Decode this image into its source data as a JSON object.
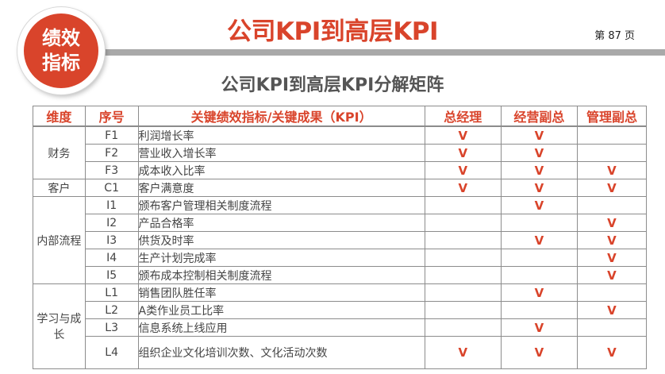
{
  "badge": {
    "line1": "绩效",
    "line2": "指标"
  },
  "header": {
    "title": "公司KPI到高层KPI",
    "page_label": "第 87 页"
  },
  "subtitle": "公司KPI到高层KPI分解矩阵",
  "colors": {
    "accent": "#d9442b",
    "bar": "#a9a9a9",
    "grid": "#8c8c8c"
  },
  "table": {
    "headers": [
      "维度",
      "序号",
      "关键绩效指标/关键成果（KPI）",
      "总经理",
      "经营副总",
      "管理副总"
    ],
    "groups": [
      {
        "dimension": "财务",
        "rows": [
          {
            "code": "F1",
            "kpi": "利润增长率",
            "gm": "V",
            "ops": "V",
            "admin": ""
          },
          {
            "code": "F2",
            "kpi": "营业收入增长率",
            "gm": "V",
            "ops": "V",
            "admin": ""
          },
          {
            "code": "F3",
            "kpi": "成本收入比率",
            "gm": "V",
            "ops": "V",
            "admin": "V"
          }
        ]
      },
      {
        "dimension": "客户",
        "rows": [
          {
            "code": "C1",
            "kpi": "客户满意度",
            "gm": "V",
            "ops": "V",
            "admin": "V"
          }
        ]
      },
      {
        "dimension": "内部流程",
        "rows": [
          {
            "code": "I1",
            "kpi": "颁布客户管理相关制度流程",
            "gm": "",
            "ops": "V",
            "admin": ""
          },
          {
            "code": "I2",
            "kpi": "产品合格率",
            "gm": "",
            "ops": "",
            "admin": "V"
          },
          {
            "code": "I3",
            "kpi": "供货及时率",
            "gm": "",
            "ops": "V",
            "admin": "V"
          },
          {
            "code": "I4",
            "kpi": "生产计划完成率",
            "gm": "",
            "ops": "",
            "admin": "V"
          },
          {
            "code": "I5",
            "kpi": "颁布成本控制相关制度流程",
            "gm": "",
            "ops": "",
            "admin": "V"
          }
        ]
      },
      {
        "dimension": "学习与成长",
        "rows": [
          {
            "code": "L1",
            "kpi": "销售团队胜任率",
            "gm": "",
            "ops": "V",
            "admin": ""
          },
          {
            "code": "L2",
            "kpi": "A类作业员工比率",
            "gm": "",
            "ops": "",
            "admin": "V"
          },
          {
            "code": "L3",
            "kpi": "信息系统上线应用",
            "gm": "",
            "ops": "V",
            "admin": ""
          },
          {
            "code": "L4",
            "kpi": "组织企业文化培训次数、文化活动次数",
            "gm": "V",
            "ops": "V",
            "admin": "V",
            "tall": true
          }
        ]
      }
    ]
  }
}
